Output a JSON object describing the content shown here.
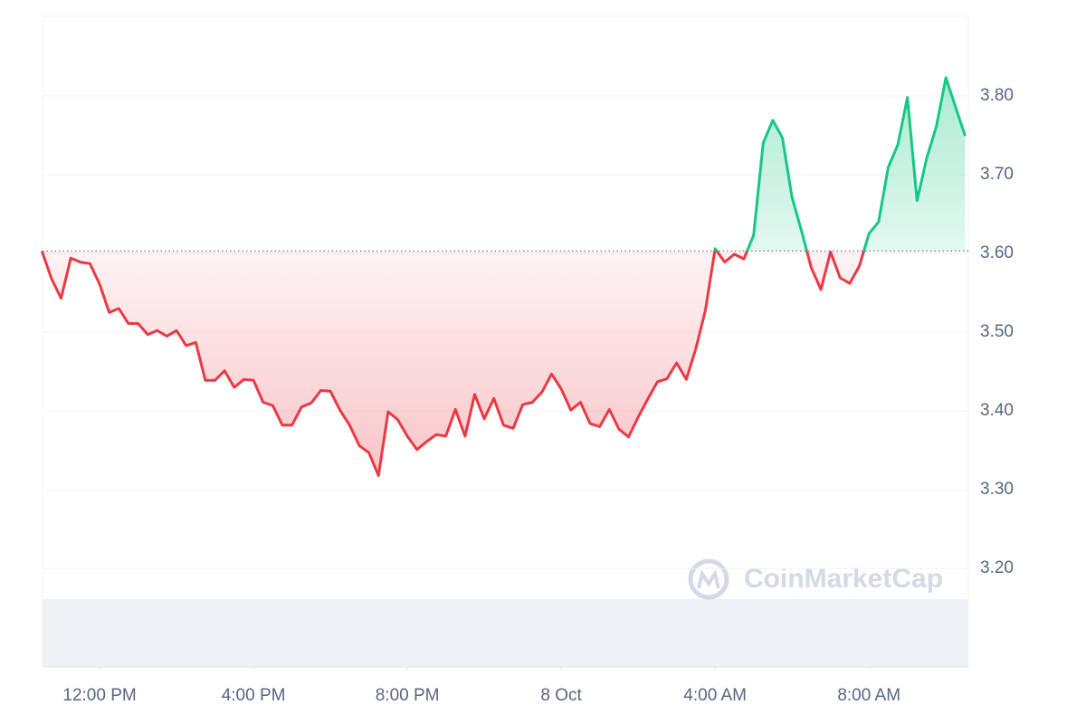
{
  "chart_data": {
    "type": "line",
    "watermark": "CoinMarketCap",
    "x": [
      630,
      645,
      660,
      675,
      690,
      705,
      720,
      735,
      750,
      765,
      780,
      795,
      810,
      825,
      840,
      855,
      870,
      885,
      900,
      915,
      930,
      945,
      960,
      975,
      990,
      1005,
      1020,
      1035,
      1050,
      1065,
      1080,
      1095,
      1110,
      1125,
      1140,
      1155,
      1170,
      1185,
      1200,
      1215,
      1230,
      1245,
      1260,
      1275,
      1290,
      1305,
      1320,
      1335,
      1350,
      1365,
      1380,
      1395,
      1410,
      1425,
      1440,
      1455,
      1470,
      1485,
      1500,
      1515,
      1530,
      1545,
      1560,
      1575,
      1590,
      1605,
      1620,
      1635,
      1650,
      1665,
      1680,
      1695,
      1710,
      1725,
      1740,
      1755,
      1770,
      1785,
      1800,
      1815,
      1830,
      1845,
      1860,
      1875,
      1890,
      1905,
      1920,
      1935,
      1950,
      1965,
      1980,
      1995,
      2010,
      2025,
      2040,
      2055,
      2070
    ],
    "values": [
      3.603,
      3.568,
      3.543,
      3.594,
      3.589,
      3.587,
      3.561,
      3.525,
      3.53,
      3.511,
      3.511,
      3.497,
      3.502,
      3.495,
      3.502,
      3.483,
      3.487,
      3.439,
      3.439,
      3.451,
      3.43,
      3.44,
      3.439,
      3.411,
      3.407,
      3.382,
      3.382,
      3.405,
      3.41,
      3.426,
      3.425,
      3.401,
      3.382,
      3.356,
      3.347,
      3.318,
      3.399,
      3.389,
      3.368,
      3.351,
      3.361,
      3.37,
      3.368,
      3.402,
      3.368,
      3.421,
      3.39,
      3.416,
      3.382,
      3.378,
      3.408,
      3.411,
      3.424,
      3.447,
      3.428,
      3.401,
      3.411,
      3.384,
      3.38,
      3.402,
      3.377,
      3.367,
      3.392,
      3.415,
      3.437,
      3.441,
      3.461,
      3.44,
      3.479,
      3.528,
      3.606,
      3.589,
      3.599,
      3.593,
      3.623,
      3.74,
      3.769,
      3.747,
      3.671,
      3.628,
      3.582,
      3.554,
      3.602,
      3.569,
      3.562,
      3.584,
      3.625,
      3.64,
      3.709,
      3.738,
      3.798,
      3.667,
      3.721,
      3.761,
      3.823,
      3.786,
      3.749
    ],
    "baseline": 3.603,
    "up_color": "#16c784",
    "down_color": "#ea3943",
    "xlim": [
      631,
      2075
    ],
    "xticks": [
      {
        "value": 720,
        "label": "12:00 PM"
      },
      {
        "value": 960,
        "label": "4:00 PM"
      },
      {
        "value": 1200,
        "label": "8:00 PM"
      },
      {
        "value": 1440,
        "label": "8 Oct"
      },
      {
        "value": 1680,
        "label": "4:00 AM"
      },
      {
        "value": 1920,
        "label": "8:00 AM"
      }
    ],
    "ylim": [
      3.075,
      3.901
    ],
    "yticks": [
      {
        "value": 3.2,
        "label": "3.20"
      },
      {
        "value": 3.3,
        "label": "3.30"
      },
      {
        "value": 3.4,
        "label": "3.40"
      },
      {
        "value": 3.5,
        "label": "3.50"
      },
      {
        "value": 3.6,
        "label": "3.60"
      },
      {
        "value": 3.7,
        "label": "3.70"
      },
      {
        "value": 3.8,
        "label": "3.80"
      }
    ],
    "grid": true
  }
}
